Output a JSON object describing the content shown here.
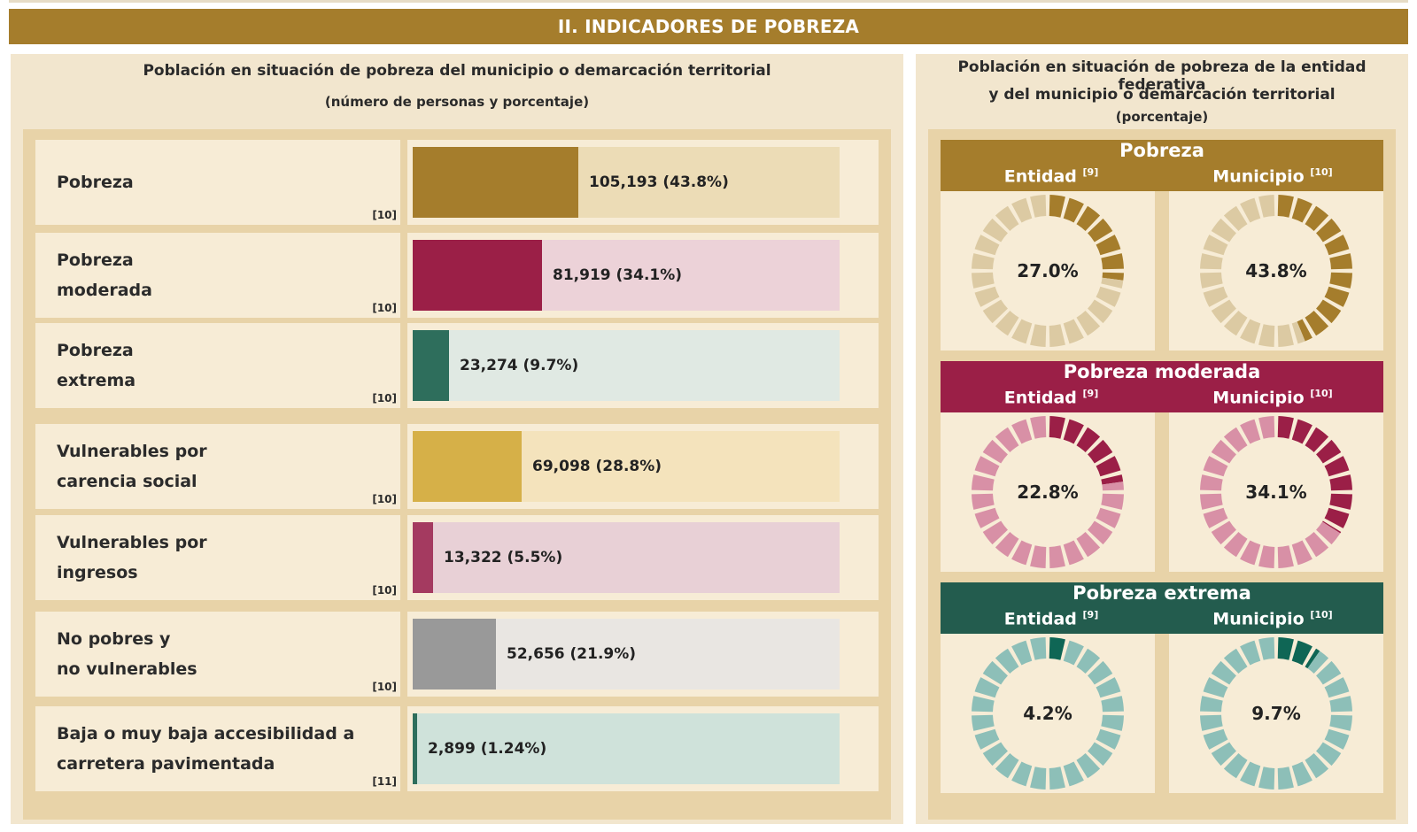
{
  "header": {
    "title": "II. INDICADORES DE POBREZA"
  },
  "left_panel": {
    "title": "Población en situación de pobreza del municipio o demarcación territorial",
    "subtitle": "(número de personas y porcentaje)"
  },
  "right_panel": {
    "title_line1": "Población en situación de pobreza de la entidad federativa",
    "title_line2": "y del municipio o demarcación territorial",
    "subtitle": "(porcentaje)"
  },
  "chart_data": [
    {
      "type": "bar",
      "orientation": "horizontal",
      "categories": [
        "Pobreza",
        "Pobreza moderada",
        "Pobreza extrema",
        "Vulnerables por carencia social",
        "Vulnerables por ingresos",
        "No pobres y no vulnerables",
        "Baja o muy baja accesibilidad a carretera pavimentada"
      ],
      "rows": [
        {
          "label_lines": [
            "Pobreza"
          ],
          "source": "[10]",
          "persons": 105193,
          "percent": 43.8,
          "value_label": "105,193 (43.8%)",
          "fill": "#a57d2c",
          "track": "#ecdcb6"
        },
        {
          "label_lines": [
            "Pobreza",
            "moderada"
          ],
          "source": "[10]",
          "persons": 81919,
          "percent": 34.1,
          "value_label": "81,919 (34.1%)",
          "fill": "#9b1f47",
          "track": "#ecd2d8"
        },
        {
          "label_lines": [
            "Pobreza",
            "extrema"
          ],
          "source": "[10]",
          "persons": 23274,
          "percent": 9.7,
          "value_label": "23,274 (9.7%)",
          "fill": "#2e6e5c",
          "track": "#e0e9e3"
        },
        {
          "label_lines": [
            "Vulnerables por",
            "carencia social"
          ],
          "source": "[10]",
          "persons": 69098,
          "percent": 28.8,
          "value_label": "69,098 (28.8%)",
          "fill": "#d6b048",
          "track": "#f4e3bc"
        },
        {
          "label_lines": [
            "Vulnerables por",
            "ingresos"
          ],
          "source": "[10]",
          "persons": 13322,
          "percent": 5.5,
          "value_label": "13,322 (5.5%)",
          "fill": "#a43a60",
          "track": "#e8d0d6"
        },
        {
          "label_lines": [
            "No pobres y",
            "no vulnerables"
          ],
          "source": "[10]",
          "persons": 52656,
          "percent": 21.9,
          "value_label": "52,656 (21.9%)",
          "fill": "#999999",
          "track": "#e9e6e2"
        },
        {
          "label_lines": [
            "Baja o muy baja accesibilidad a",
            "carretera pavimentada"
          ],
          "source": "[11]",
          "persons": 2899,
          "percent": 1.24,
          "value_label": "2,899 (1.24%)",
          "fill": "#2e6e5c",
          "track": "#cfe2da"
        }
      ],
      "xlim": [
        0,
        100
      ],
      "unit": "%"
    },
    {
      "type": "donut",
      "panels": [
        {
          "title": "Pobreza",
          "head_color": "#a57d2c",
          "filled_color": "#a57d2c",
          "empty_color": "#dccaa3",
          "entidad_label": "Entidad",
          "entidad_ref": "[9]",
          "entidad_value": 27.0,
          "entidad_label_value": "27.0%",
          "municipio_label": "Municipio",
          "municipio_ref": "[10]",
          "municipio_value": 43.8,
          "municipio_label_value": "43.8%"
        },
        {
          "title": "Pobreza moderada",
          "head_color": "#9b1f47",
          "filled_color": "#9b1f47",
          "empty_color": "#d890a6",
          "entidad_label": "Entidad",
          "entidad_ref": "[9]",
          "entidad_value": 22.8,
          "entidad_label_value": "22.8%",
          "municipio_label": "Municipio",
          "municipio_ref": "[10]",
          "municipio_value": 34.1,
          "municipio_label_value": "34.1%"
        },
        {
          "title": "Pobreza extrema",
          "head_color": "#235c4e",
          "filled_color": "#0f6655",
          "empty_color": "#8dbfb8",
          "entidad_label": "Entidad",
          "entidad_ref": "[9]",
          "entidad_value": 4.2,
          "entidad_label_value": "4.2%",
          "municipio_label": "Municipio",
          "municipio_ref": "[10]",
          "municipio_value": 9.7,
          "municipio_label_value": "9.7%"
        }
      ]
    }
  ]
}
